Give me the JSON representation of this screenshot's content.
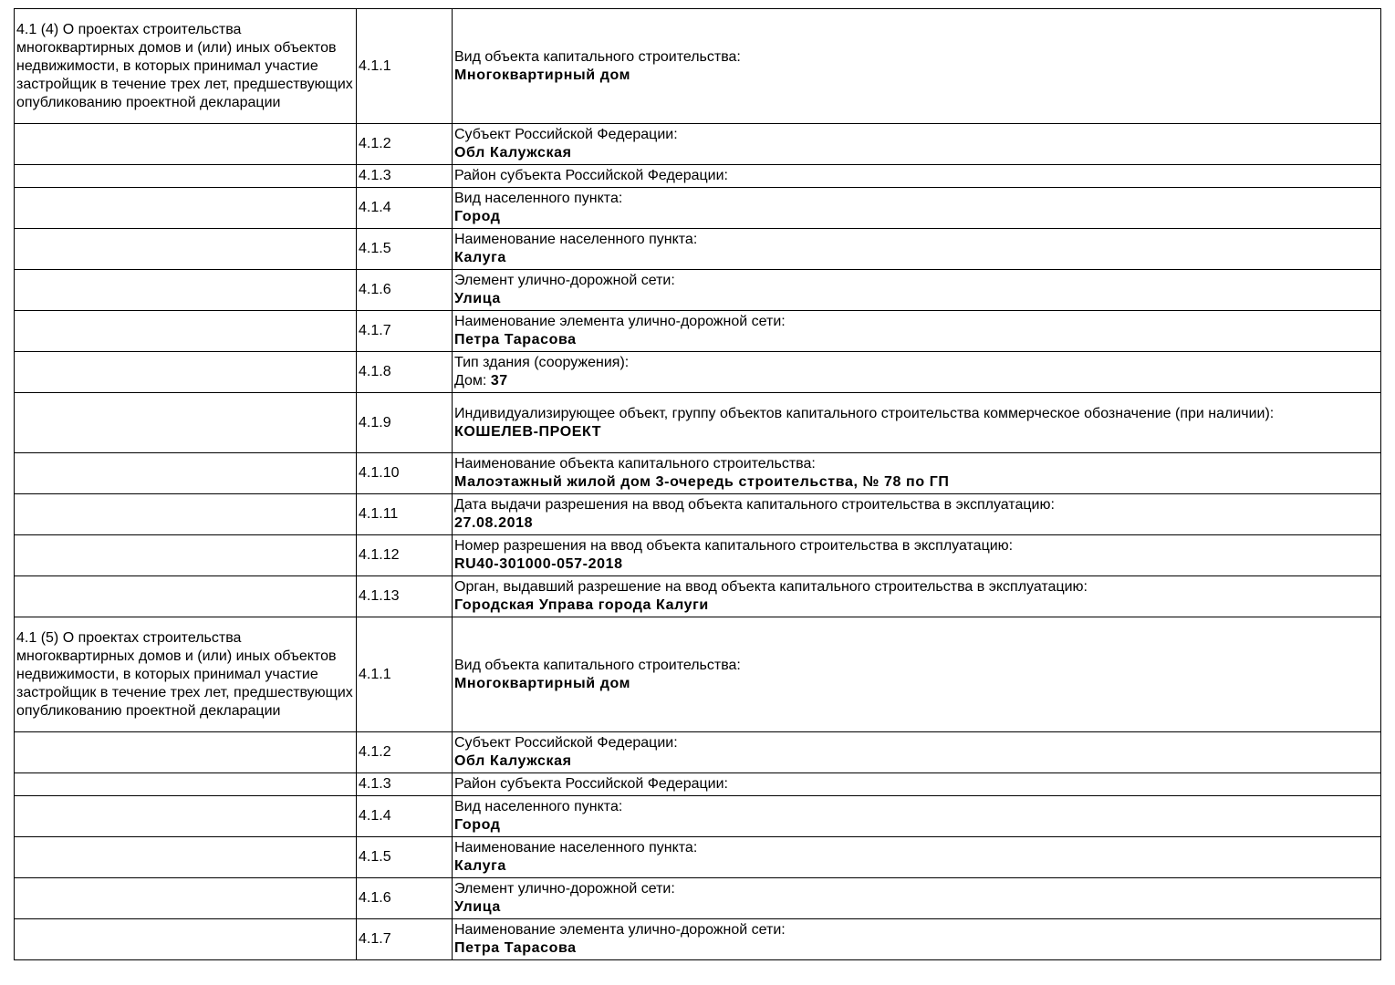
{
  "blocks": [
    {
      "heading": "4.1 (4) О проектах строительства многоквартирных домов и (или) иных объектов недвижимости, в которых принимал участие застройщик в течение трех лет, предшествующих опубликованию проектной декларации",
      "rows": [
        {
          "num": "4.1.1",
          "label": "Вид объекта капитального строительства:",
          "value": "Многоквартирный дом"
        },
        {
          "num": "4.1.2",
          "label": "Субъект Российской Федерации:",
          "value": "Обл Калужская"
        },
        {
          "num": "4.1.3",
          "label": "Район субъекта Российской Федерации:",
          "value": ""
        },
        {
          "num": "4.1.4",
          "label": "Вид населенного пункта:",
          "value": "Город"
        },
        {
          "num": "4.1.5",
          "label": "Наименование населенного пункта:",
          "value": "Калуга"
        },
        {
          "num": "4.1.6",
          "label": "Элемент улично-дорожной сети:",
          "value": "Улица"
        },
        {
          "num": "4.1.7",
          "label": "Наименование элемента улично-дорожной сети:",
          "value": "Петра Тарасова"
        },
        {
          "num": "4.1.8",
          "label": "Тип здания (сооружения):",
          "label_suffix": "Дом: ",
          "value": "37"
        },
        {
          "num": "4.1.9",
          "label": "Индивидуализирующее объект, группу объектов капитального строительства коммерческое обозначение (при наличии):",
          "value": "КОШЕЛЕВ-ПРОЕКТ",
          "lines": 3
        },
        {
          "num": "4.1.10",
          "label": "Наименование объекта капитального строительства:",
          "value": "Малоэтажный жилой дом 3-очередь строительства, № 78 по ГП"
        },
        {
          "num": "4.1.11",
          "label": "Дата выдачи разрешения на ввод объекта капитального строительства в эксплуатацию:",
          "value": "27.08.2018"
        },
        {
          "num": "4.1.12",
          "label": "Номер разрешения на ввод объекта капитального строительства в эксплуатацию:",
          "value": "RU40-301000-057-2018"
        },
        {
          "num": "4.1.13",
          "label": "Орган, выдавший разрешение на ввод объекта капитального строительства в эксплуатацию:",
          "value": "Городская Управа города Калуги"
        }
      ]
    },
    {
      "heading": "4.1 (5) О проектах строительства многоквартирных домов и (или) иных объектов недвижимости, в которых принимал участие застройщик в течение трех лет, предшествующих опубликованию проектной декларации",
      "rows": [
        {
          "num": "4.1.1",
          "label": "Вид объекта капитального строительства:",
          "value": "Многоквартирный дом"
        },
        {
          "num": "4.1.2",
          "label": "Субъект Российской Федерации:",
          "value": "Обл Калужская"
        },
        {
          "num": "4.1.3",
          "label": "Район субъекта Российской Федерации:",
          "value": ""
        },
        {
          "num": "4.1.4",
          "label": "Вид населенного пункта:",
          "value": "Город"
        },
        {
          "num": "4.1.5",
          "label": "Наименование населенного пункта:",
          "value": "Калуга"
        },
        {
          "num": "4.1.6",
          "label": "Элемент улично-дорожной сети:",
          "value": "Улица"
        },
        {
          "num": "4.1.7",
          "label": "Наименование элемента улично-дорожной сети:",
          "value": "Петра Тарасова"
        }
      ]
    }
  ]
}
